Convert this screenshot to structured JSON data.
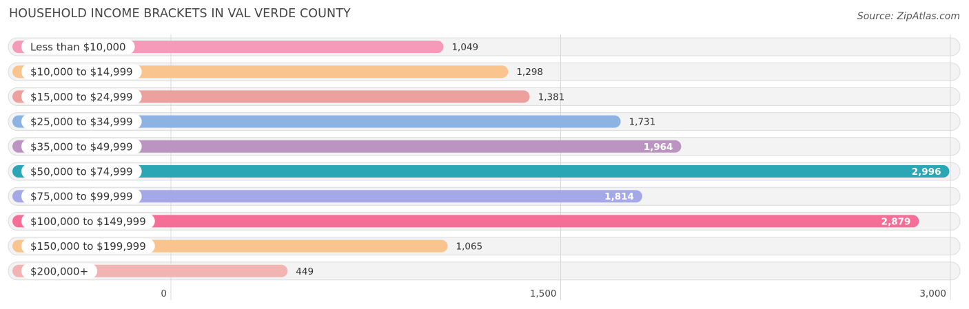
{
  "chart_data": {
    "type": "bar",
    "orientation": "horizontal",
    "title": "HOUSEHOLD INCOME BRACKETS IN VAL VERDE COUNTY",
    "source": "Source: ZipAtlas.com",
    "categories": [
      "Less than $10,000",
      "$10,000 to $14,999",
      "$15,000 to $24,999",
      "$25,000 to $34,999",
      "$35,000 to $49,999",
      "$50,000 to $74,999",
      "$75,000 to $99,999",
      "$100,000 to $149,999",
      "$150,000 to $199,999",
      "$200,000+"
    ],
    "values": [
      1049,
      1298,
      1381,
      1731,
      1964,
      2996,
      1814,
      2879,
      1065,
      449
    ],
    "value_labels": [
      "1,049",
      "1,298",
      "1,381",
      "1,731",
      "1,964",
      "2,996",
      "1,814",
      "2,879",
      "1,065",
      "449"
    ],
    "colors": [
      "#f59ab8",
      "#f9c48e",
      "#eda19f",
      "#8db3e2",
      "#bb94c2",
      "#2aa6b5",
      "#a5a8e6",
      "#f56e98",
      "#f9c48e",
      "#f2b4b3"
    ],
    "xlim": [
      0,
      3000
    ],
    "ticks": [
      0,
      1500,
      3000
    ],
    "tick_labels": [
      "0",
      "1,500",
      "3,000"
    ],
    "grid": true
  }
}
